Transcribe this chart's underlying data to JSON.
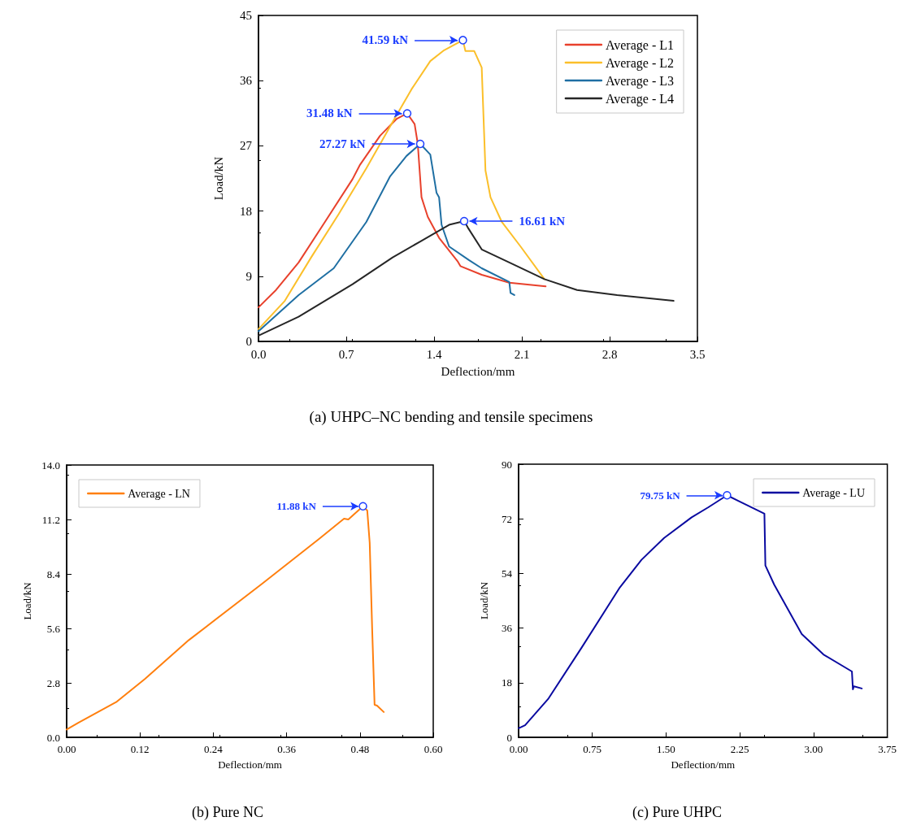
{
  "chart_data": [
    {
      "type": "line",
      "title": "(a) UHPC–NC bending and tensile specimens",
      "xlabel": "Deflection/mm",
      "ylabel": "Load/kN",
      "legend": "top right",
      "marker": "none",
      "line_style": "solid",
      "xlim": [
        0,
        3.5
      ],
      "ylim": [
        0,
        45
      ],
      "xticks": [
        {
          "value": 0,
          "label": "0.0"
        },
        0.7,
        1.4,
        2.1,
        2.8,
        3.5
      ],
      "yticks": [
        0,
        9,
        18,
        27,
        36,
        45
      ],
      "series": [
        {
          "name": "Average - L1",
          "color": "#e8412c",
          "x": [
            0,
            0.14,
            0.32,
            0.53,
            0.75,
            0.81,
            0.97,
            1.1,
            1.186,
            1.245,
            1.27,
            1.3,
            1.35,
            1.44,
            1.59,
            1.61,
            1.78,
            2.0,
            2.29
          ],
          "values": [
            4.7,
            7.1,
            10.9,
            16.5,
            22.4,
            24.4,
            28.4,
            30.7,
            31.48,
            30.0,
            27.3,
            19.9,
            17.2,
            14.3,
            11.0,
            10.4,
            9.2,
            8.1,
            7.6
          ]
        },
        {
          "name": "Average - L2",
          "color": "#fbbf2a",
          "x": [
            0,
            0.21,
            0.42,
            0.64,
            0.86,
            1.07,
            1.22,
            1.37,
            1.48,
            1.63,
            1.65,
            1.72,
            1.78,
            1.81,
            1.85,
            1.94,
            2.09,
            2.28
          ],
          "values": [
            1.7,
            5.6,
            11.6,
            17.6,
            23.9,
            30.3,
            34.8,
            38.7,
            40.2,
            41.59,
            40.1,
            40.1,
            37.8,
            23.6,
            19.9,
            16.5,
            13.1,
            8.6
          ]
        },
        {
          "name": "Average - L3",
          "color": "#1f6fa3",
          "x": [
            0,
            0.32,
            0.6,
            0.86,
            1.05,
            1.18,
            1.29,
            1.37,
            1.42,
            1.44,
            1.46,
            1.52,
            1.68,
            1.78,
            2.0,
            2.01,
            2.04
          ],
          "values": [
            1.4,
            6.4,
            10.1,
            16.5,
            22.8,
            25.6,
            27.27,
            25.8,
            20.5,
            19.9,
            16.1,
            13.1,
            11.2,
            10.1,
            8.2,
            6.7,
            6.4
          ]
        },
        {
          "name": "Average - L4",
          "color": "#262626",
          "x": [
            0,
            0.32,
            0.75,
            1.07,
            1.29,
            1.52,
            1.64,
            1.67,
            1.78,
            2.0,
            2.28,
            2.54,
            2.86,
            3.31
          ],
          "values": [
            0.8,
            3.4,
            7.9,
            11.6,
            13.8,
            16.1,
            16.61,
            15.7,
            12.7,
            10.9,
            8.6,
            7.1,
            6.4,
            5.6
          ]
        }
      ],
      "annotations": [
        {
          "text": "41.59 kN",
          "x": 1.63,
          "y": 41.59
        },
        {
          "text": "31.48 kN",
          "x": 1.186,
          "y": 31.48
        },
        {
          "text": "27.27 kN",
          "x": 1.29,
          "y": 27.27
        },
        {
          "text": "16.61 kN",
          "x": 1.64,
          "y": 16.61
        }
      ]
    },
    {
      "type": "line",
      "title": "(b) Pure NC",
      "xlabel": "Deflection/mm",
      "ylabel": "Load/kN",
      "legend": "top left",
      "marker": "none",
      "line_style": "solid",
      "xlim": [
        0,
        0.6
      ],
      "ylim": [
        0,
        14
      ],
      "xticks": [
        {
          "value": 0,
          "label": "0.00"
        },
        0.12,
        0.24,
        0.36,
        0.48,
        {
          "value": 0.6,
          "label": "0.60"
        }
      ],
      "yticks": [
        {
          "value": 0,
          "label": "0.0"
        },
        2.8,
        5.6,
        8.4,
        11.2,
        {
          "value": 14,
          "label": "14.0"
        }
      ],
      "series": [
        {
          "name": "Average - LN",
          "color": "#ff7f0e",
          "x": [
            0,
            0.019,
            0.081,
            0.128,
            0.2,
            0.32,
            0.413,
            0.454,
            0.461,
            0.485,
            0.492,
            0.496,
            0.5,
            0.504,
            0.508,
            0.519
          ],
          "values": [
            0.4,
            0.75,
            1.81,
            3.0,
            5.0,
            7.9,
            10.2,
            11.24,
            11.2,
            11.88,
            11.66,
            10.0,
            5.6,
            1.67,
            1.63,
            1.3
          ]
        }
      ],
      "annotations": [
        {
          "text": "11.88 kN",
          "x": 0.485,
          "y": 11.88
        }
      ]
    },
    {
      "type": "line",
      "title": "(c) Pure UHPC",
      "xlabel": "Deflection/mm",
      "ylabel": "Load/kN",
      "legend": "top right",
      "marker": "none",
      "line_style": "solid",
      "xlim": [
        0,
        3.75
      ],
      "ylim": [
        0,
        90
      ],
      "xticks": [
        {
          "value": 0,
          "label": "0.00"
        },
        0.75,
        {
          "value": 1.5,
          "label": "1.50"
        },
        2.25,
        {
          "value": 3,
          "label": "3.00"
        },
        3.75
      ],
      "yticks": [
        0,
        18,
        36,
        54,
        72,
        90
      ],
      "series": [
        {
          "name": "Average - LU",
          "color": "#0a0aa0",
          "x": [
            0,
            0.066,
            0.3,
            0.64,
            1.03,
            1.25,
            1.48,
            1.76,
            1.93,
            2.12,
            2.23,
            2.5,
            2.51,
            2.6,
            2.88,
            3.1,
            3.39,
            3.4,
            3.41,
            3.49
          ],
          "values": [
            3,
            4.0,
            12.6,
            29.5,
            49.4,
            58.5,
            65.7,
            72.5,
            75.8,
            79.75,
            78,
            73.7,
            56.6,
            50.3,
            34,
            27.3,
            21.7,
            15.8,
            16.8,
            16.1
          ]
        }
      ],
      "annotations": [
        {
          "text": "79.75 kN",
          "x": 2.12,
          "y": 79.75
        }
      ]
    }
  ]
}
